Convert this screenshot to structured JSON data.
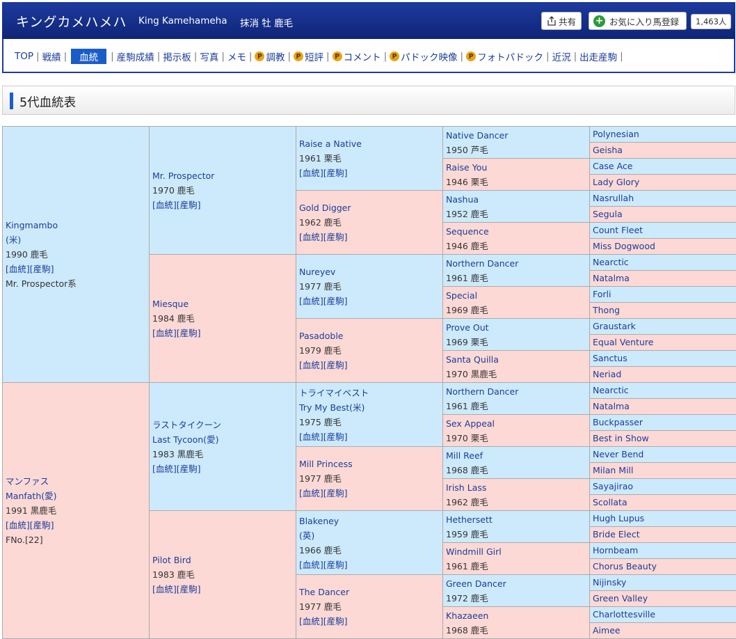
{
  "header": {
    "name_ja": "キングカメハメハ",
    "name_en": "King Kamehameha",
    "status": "抹消 牡 鹿毛",
    "share_label": "共有",
    "fav_label": "お気に入り馬登録",
    "fav_count": "1,463人",
    "bg_color": "#1d3a9e"
  },
  "nav": {
    "items": [
      {
        "label": "TOP"
      },
      {
        "label": "戦績"
      },
      {
        "label": "血統",
        "active": true
      },
      {
        "label": "産駒成績"
      },
      {
        "label": "掲示板"
      },
      {
        "label": "写真"
      },
      {
        "label": "メモ"
      },
      {
        "label": "調教",
        "premium": true
      },
      {
        "label": "短評",
        "premium": true
      },
      {
        "label": "コメント",
        "premium": true
      },
      {
        "label": "パドック映像",
        "premium": true
      },
      {
        "label": "フォトパドック",
        "premium": true
      },
      {
        "label": "近況"
      },
      {
        "label": "出走産駒"
      }
    ],
    "premium_icon": "P"
  },
  "section": {
    "title": "5代血統表"
  },
  "pedigree": {
    "links": "[血統][産駒]",
    "g1": [
      {
        "name": "Kingmambo",
        "extra_lines": [
          "(米)"
        ],
        "info": "1990 鹿毛",
        "lineage": "Mr. Prospector系",
        "sex": "m"
      },
      {
        "name": "マンファス",
        "extra_lines": [
          "Manfath(愛)"
        ],
        "info": "1991 黒鹿毛",
        "lineage": "FNo.[22]",
        "sex": "f"
      }
    ],
    "g2": [
      {
        "name": "Mr. Prospector",
        "extra_lines": [],
        "info": "1970 鹿毛",
        "sex": "m"
      },
      {
        "name": "Miesque",
        "extra_lines": [],
        "info": "1984 鹿毛",
        "sex": "f"
      },
      {
        "name": "ラストタイクーン",
        "extra_lines": [
          "Last Tycoon(愛)"
        ],
        "info": "1983 黒鹿毛",
        "sex": "m"
      },
      {
        "name": "Pilot Bird",
        "extra_lines": [],
        "info": "1983 鹿毛",
        "sex": "f"
      }
    ],
    "g3": [
      {
        "name": "Raise a Native",
        "extra_lines": [],
        "info": "1961 栗毛",
        "sex": "m"
      },
      {
        "name": "Gold Digger",
        "extra_lines": [],
        "info": "1962 鹿毛",
        "sex": "f"
      },
      {
        "name": "Nureyev",
        "extra_lines": [],
        "info": "1977 鹿毛",
        "sex": "m"
      },
      {
        "name": "Pasadoble",
        "extra_lines": [],
        "info": "1979 鹿毛",
        "sex": "f"
      },
      {
        "name": "トライマイベスト",
        "extra_lines": [
          "Try My Best(米)"
        ],
        "info": "1975 鹿毛",
        "sex": "m"
      },
      {
        "name": "Mill Princess",
        "extra_lines": [],
        "info": "1977 鹿毛",
        "sex": "f"
      },
      {
        "name": "Blakeney",
        "extra_lines": [
          "(英)"
        ],
        "info": "1966 鹿毛",
        "sex": "m"
      },
      {
        "name": "The Dancer",
        "extra_lines": [],
        "info": "1977 鹿毛",
        "sex": "f"
      }
    ],
    "g4": [
      {
        "name": "Native Dancer",
        "info": "1950 芦毛",
        "sex": "m"
      },
      {
        "name": "Raise You",
        "info": "1946 栗毛",
        "sex": "f"
      },
      {
        "name": "Nashua",
        "info": "1952 鹿毛",
        "sex": "m"
      },
      {
        "name": "Sequence",
        "info": "1946 鹿毛",
        "sex": "f"
      },
      {
        "name": "Northern Dancer",
        "info": "1961 鹿毛",
        "sex": "m",
        "highlight": true
      },
      {
        "name": "Special",
        "info": "1969 鹿毛",
        "sex": "f"
      },
      {
        "name": "Prove Out",
        "info": "1969 栗毛",
        "sex": "m"
      },
      {
        "name": "Santa Quilla",
        "info": "1970 黒鹿毛",
        "sex": "f"
      },
      {
        "name": "Northern Dancer",
        "info": "1961 鹿毛",
        "sex": "m",
        "highlight": true
      },
      {
        "name": "Sex Appeal",
        "info": "1970 栗毛",
        "sex": "f"
      },
      {
        "name": "Mill Reef",
        "info": "1968 鹿毛",
        "sex": "m"
      },
      {
        "name": "Irish Lass",
        "info": "1962 鹿毛",
        "sex": "f"
      },
      {
        "name": "Hethersett",
        "info": "1959 鹿毛",
        "sex": "m"
      },
      {
        "name": "Windmill Girl",
        "info": "1961 鹿毛",
        "sex": "f"
      },
      {
        "name": "Green Dancer",
        "info": "1972 鹿毛",
        "sex": "m"
      },
      {
        "name": "Khazaeen",
        "info": "1968 鹿毛",
        "sex": "f"
      }
    ],
    "g5": [
      "Polynesian",
      "Geisha",
      "Case Ace",
      "Lady Glory",
      "Nasrullah",
      "Segula",
      "Count Fleet",
      "Miss Dogwood",
      "Nearctic",
      "Natalma",
      "Forli",
      "Thong",
      "Graustark",
      "Equal Venture",
      "Sanctus",
      "Neriad",
      "Nearctic",
      "Natalma",
      "Buckpasser",
      "Best in Show",
      "Never Bend",
      "Milan Mill",
      "Sayajirao",
      "Scollata",
      "Hugh Lupus",
      "Bride Elect",
      "Hornbeam",
      "Chorus Beauty",
      "Nijinsky",
      "Green Valley",
      "Charlottesville",
      "Aimee"
    ],
    "colors": {
      "male": "#cdeafc",
      "female": "#fcd9d5",
      "highlight": "#d61a1a"
    }
  }
}
